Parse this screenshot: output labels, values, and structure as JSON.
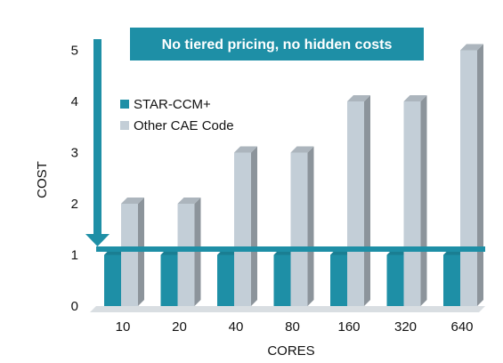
{
  "chart_data": {
    "type": "bar",
    "categories": [
      "10",
      "20",
      "40",
      "80",
      "160",
      "320",
      "640"
    ],
    "series": [
      {
        "name": "STAR-CCM+",
        "values": [
          1,
          1,
          1,
          1,
          1,
          1,
          1
        ],
        "color": "#1e8fa6"
      },
      {
        "name": "Other CAE Code",
        "values": [
          2,
          2,
          3,
          3,
          4,
          4,
          5
        ],
        "color": "#c3ced7"
      }
    ],
    "xlabel": "CORES",
    "ylabel": "COST",
    "ylim": [
      0,
      5
    ],
    "yticks": [
      "0",
      "1",
      "2",
      "3",
      "4",
      "5"
    ],
    "legend_position": "top-left",
    "grid": false,
    "annotation": "No tiered pricing, no hidden costs",
    "accent_color": "#1e8fa6"
  }
}
